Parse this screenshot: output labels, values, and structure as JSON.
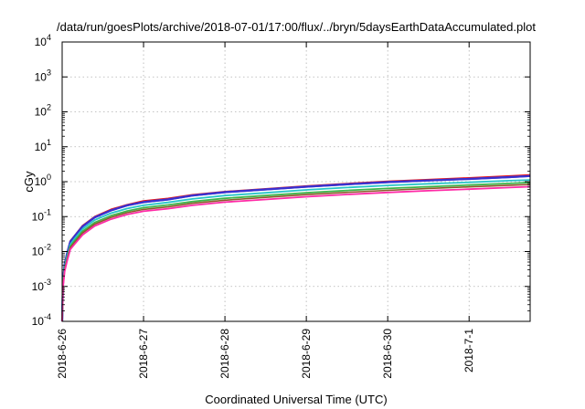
{
  "chart_data": {
    "type": "line",
    "title": "/data/run/goesPlots/archive/2018-07-01/17:00/flux/../bryn/5daysEarthDataAccumulated.plot",
    "xlabel": "Coordinated Universal Time (UTC)",
    "ylabel": "cGy",
    "x_unit": "days from 2018-6-26",
    "xlim": [
      0,
      5.75
    ],
    "ylim": [
      0.0001,
      10000
    ],
    "yscale": "log",
    "grid": true,
    "legend": "none",
    "x_ticks": [
      {
        "value": 0,
        "label": "2018-6-26"
      },
      {
        "value": 1,
        "label": "2018-6-27"
      },
      {
        "value": 2,
        "label": "2018-6-28"
      },
      {
        "value": 3,
        "label": "2018-6-29"
      },
      {
        "value": 4,
        "label": "2018-6-30"
      },
      {
        "value": 5,
        "label": "2018-7-1"
      }
    ],
    "y_ticks": [
      {
        "value": 0.0001,
        "base": "10",
        "exp": "-4"
      },
      {
        "value": 0.001,
        "base": "10",
        "exp": "-3"
      },
      {
        "value": 0.01,
        "base": "10",
        "exp": "-2"
      },
      {
        "value": 0.1,
        "base": "10",
        "exp": "-1"
      },
      {
        "value": 1,
        "base": "10",
        "exp": "0"
      },
      {
        "value": 10,
        "base": "10",
        "exp": "1"
      },
      {
        "value": 100,
        "base": "10",
        "exp": "2"
      },
      {
        "value": 1000,
        "base": "10",
        "exp": "3"
      },
      {
        "value": 10000,
        "base": "10",
        "exp": "4"
      }
    ],
    "x": [
      0.0,
      0.01,
      0.03,
      0.06,
      0.1,
      0.15,
      0.25,
      0.4,
      0.6,
      0.8,
      1.0,
      1.3,
      1.6,
      2.0,
      2.5,
      3.0,
      3.5,
      4.0,
      4.5,
      5.0,
      5.5,
      5.75
    ],
    "series": [
      {
        "color": "#e8141c",
        "width": 1.8,
        "values": [
          0.0001,
          0.0015,
          0.0045,
          0.009,
          0.02,
          0.028,
          0.055,
          0.1,
          0.16,
          0.22,
          0.28,
          0.33,
          0.42,
          0.52,
          0.62,
          0.75,
          0.88,
          1.02,
          1.14,
          1.28,
          1.45,
          1.55
        ]
      },
      {
        "color": "#1a7bd8",
        "width": 2.2,
        "values": [
          0.0001,
          0.0014,
          0.0042,
          0.0085,
          0.019,
          0.027,
          0.052,
          0.095,
          0.15,
          0.21,
          0.26,
          0.31,
          0.4,
          0.5,
          0.6,
          0.72,
          0.84,
          0.97,
          1.08,
          1.2,
          1.35,
          1.45
        ]
      },
      {
        "color": "#3a2fd0",
        "width": 2.2,
        "values": [
          0.0001,
          0.0014,
          0.0042,
          0.0085,
          0.019,
          0.027,
          0.052,
          0.095,
          0.15,
          0.21,
          0.26,
          0.31,
          0.4,
          0.5,
          0.6,
          0.72,
          0.84,
          0.97,
          1.08,
          1.2,
          1.35,
          1.45
        ]
      },
      {
        "color": "#28c4c8",
        "width": 1.8,
        "values": [
          0.0001,
          0.0012,
          0.0036,
          0.0072,
          0.016,
          0.023,
          0.044,
          0.08,
          0.125,
          0.17,
          0.21,
          0.255,
          0.32,
          0.4,
          0.48,
          0.58,
          0.68,
          0.78,
          0.87,
          0.96,
          1.07,
          1.12
        ]
      },
      {
        "color": "#3cb54a",
        "width": 1.8,
        "values": [
          0.0001,
          0.0011,
          0.0032,
          0.0063,
          0.014,
          0.02,
          0.038,
          0.068,
          0.106,
          0.145,
          0.18,
          0.215,
          0.27,
          0.335,
          0.4,
          0.48,
          0.56,
          0.64,
          0.72,
          0.8,
          0.89,
          0.95
        ]
      },
      {
        "color": "#8b5a2b",
        "width": 1.6,
        "values": [
          0.0001,
          0.001,
          0.003,
          0.0058,
          0.013,
          0.018,
          0.034,
          0.061,
          0.095,
          0.13,
          0.16,
          0.19,
          0.24,
          0.295,
          0.355,
          0.425,
          0.495,
          0.565,
          0.64,
          0.71,
          0.79,
          0.83
        ]
      },
      {
        "color": "#ff2aa6",
        "width": 1.8,
        "values": [
          0.0001,
          0.0009,
          0.0027,
          0.0052,
          0.0115,
          0.016,
          0.03,
          0.054,
          0.084,
          0.115,
          0.142,
          0.168,
          0.21,
          0.26,
          0.31,
          0.37,
          0.43,
          0.49,
          0.55,
          0.61,
          0.68,
          0.72
        ]
      }
    ]
  }
}
